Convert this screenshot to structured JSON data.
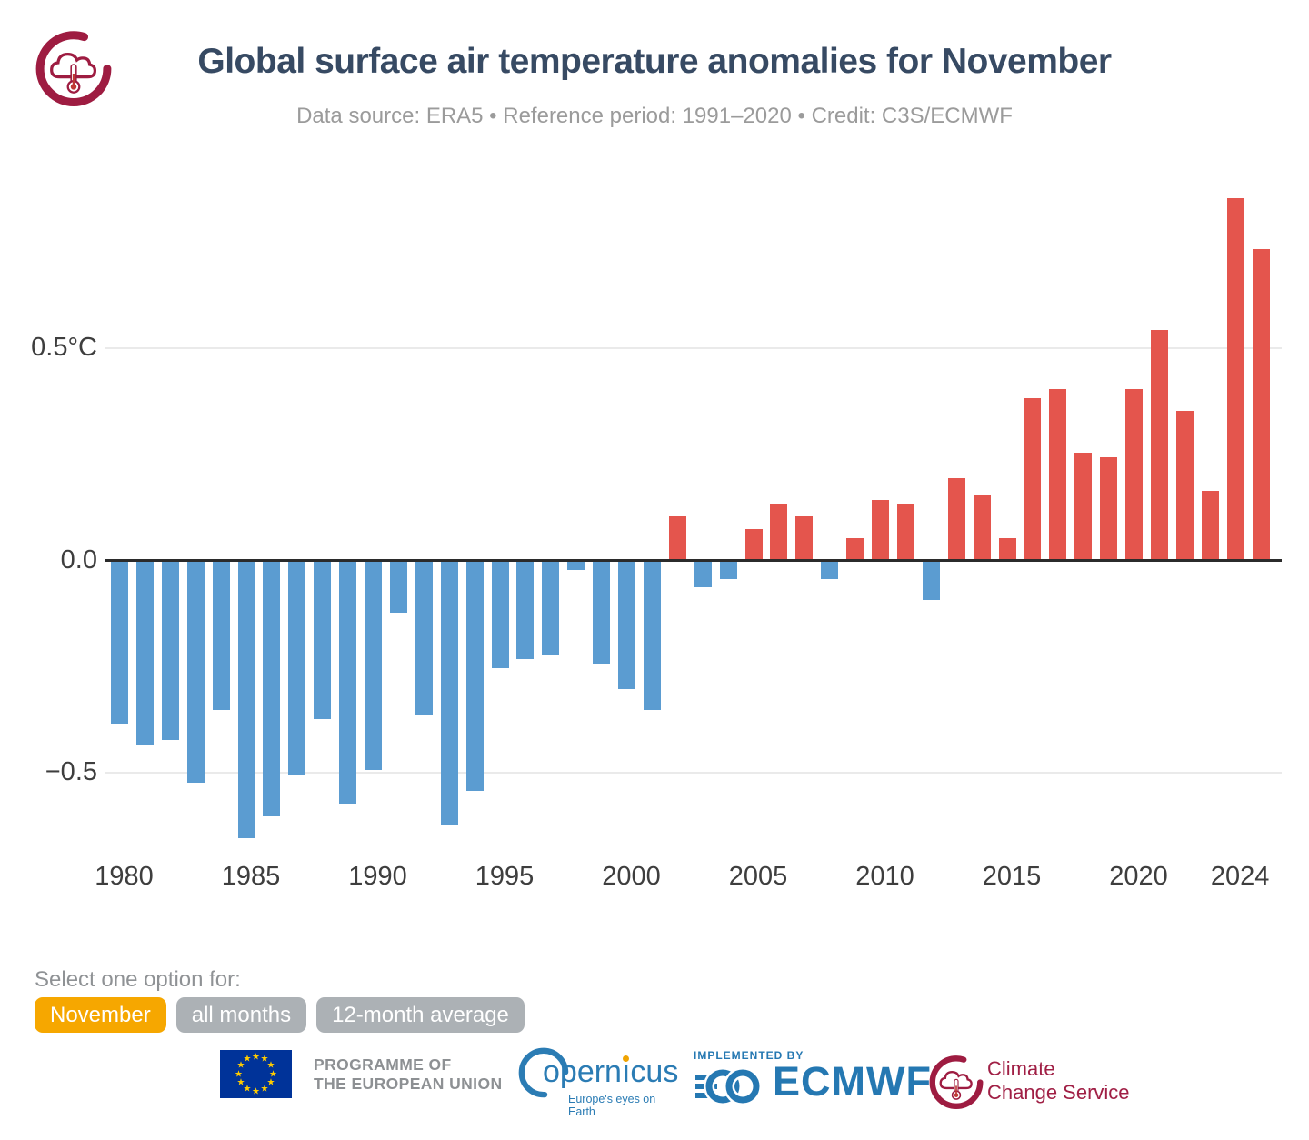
{
  "chart_data": {
    "type": "bar",
    "title": "Global surface air temperature anomalies for November",
    "subtitle": "Data source: ERA5 • Reference period: 1991–2020 • Credit: C3S/ECMWF",
    "unit": "°C",
    "years": [
      1980,
      1981,
      1982,
      1983,
      1984,
      1985,
      1986,
      1987,
      1988,
      1989,
      1990,
      1991,
      1992,
      1993,
      1994,
      1995,
      1996,
      1997,
      1998,
      1999,
      2000,
      2001,
      2002,
      2003,
      2004,
      2005,
      2006,
      2007,
      2008,
      2009,
      2010,
      2011,
      2012,
      2013,
      2014,
      2015,
      2016,
      2017,
      2018,
      2019,
      2020,
      2021,
      2022,
      2023,
      2024,
      2025
    ],
    "values": [
      -0.38,
      -0.43,
      -0.42,
      -0.52,
      -0.35,
      -0.65,
      -0.6,
      -0.5,
      -0.37,
      -0.57,
      -0.49,
      -0.12,
      -0.36,
      -0.62,
      -0.54,
      -0.25,
      -0.23,
      -0.22,
      -0.02,
      -0.24,
      -0.3,
      -0.35,
      0.1,
      -0.06,
      -0.04,
      0.07,
      0.13,
      0.1,
      -0.04,
      0.05,
      0.14,
      0.13,
      -0.09,
      0.19,
      0.15,
      0.05,
      0.38,
      0.4,
      0.25,
      0.24,
      0.4,
      0.54,
      0.35,
      0.16,
      0.85,
      0.73
    ],
    "xtick_labels": [
      1980,
      1985,
      1990,
      1995,
      2000,
      2005,
      2010,
      2015,
      2020,
      2024
    ],
    "yticks": [
      {
        "value": 0.5,
        "label": "0.5°C"
      },
      {
        "value": 0.0,
        "label": "0.0"
      },
      {
        "value": -0.5,
        "label": "−0.5"
      }
    ],
    "ylim": [
      -0.75,
      0.95
    ],
    "grid": "horizontal",
    "legend": "none",
    "colors": {
      "positive": "#e4554d",
      "negative": "#5b9cd1"
    }
  },
  "controls": {
    "prompt": "Select one option for:",
    "selected_bg": "#f6a700",
    "unselected_bg": "#acb1b5",
    "options": [
      {
        "label": "November",
        "selected": true
      },
      {
        "label": "all months",
        "selected": false
      },
      {
        "label": "12-month average",
        "selected": false
      }
    ]
  },
  "footer": {
    "eu": {
      "line1": "PROGRAMME OF",
      "line2": "THE EUROPEAN UNION"
    },
    "copernicus": {
      "name": "opernicus",
      "tagline": "Europe's eyes on Earth"
    },
    "ecmwf": {
      "eyebrow": "IMPLEMENTED BY",
      "name": "ECMWF"
    },
    "c3s": {
      "line1": "Climate",
      "line2": "Change Service"
    }
  },
  "brand_colors": {
    "title": "#374a63",
    "c3s_maroon": "#9e1c41",
    "copernicus_blue": "#2b7cb4",
    "ecmwf_blue": "#2578b2",
    "eu_flag_blue": "#003399",
    "eu_star_yellow": "#ffcc00"
  }
}
